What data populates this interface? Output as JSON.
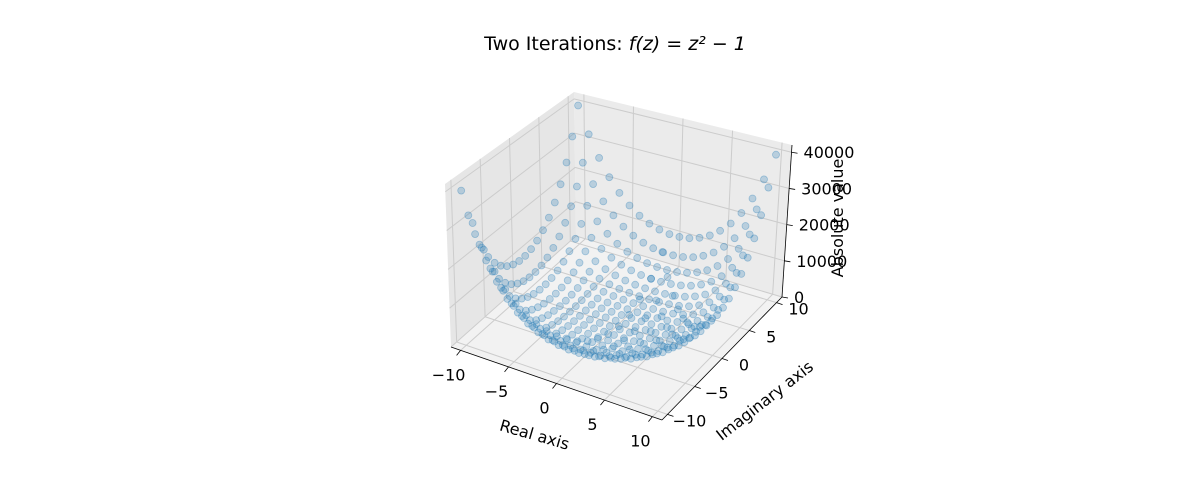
{
  "chart_data": {
    "type": "scatter",
    "projection": "3d",
    "title_prefix": "Two Iterations: ",
    "title_math": "f(z) = z² − 1",
    "xlabel": "Real axis",
    "ylabel": "Imaginary axis",
    "zlabel": "Absolute value",
    "x_ticks": [
      "−10",
      "−5",
      "0",
      "5",
      "10"
    ],
    "y_ticks": [
      "−10",
      "−5",
      "0",
      "5",
      "10"
    ],
    "z_ticks": [
      "0",
      "10000",
      "20000",
      "30000",
      "40000"
    ],
    "xlim": [
      -11,
      11
    ],
    "ylim": [
      -11,
      11
    ],
    "zlim": [
      0,
      42000
    ],
    "grid": true,
    "marker_color": "#1f77b4",
    "marker_alpha": 0.25,
    "series": [
      {
        "function": "|f(f(z))|, f(z) = z^2 - 1",
        "x_range": [
          -10,
          10
        ],
        "y_range": [
          -10,
          10
        ],
        "grid_points_per_axis": 20
      }
    ]
  }
}
